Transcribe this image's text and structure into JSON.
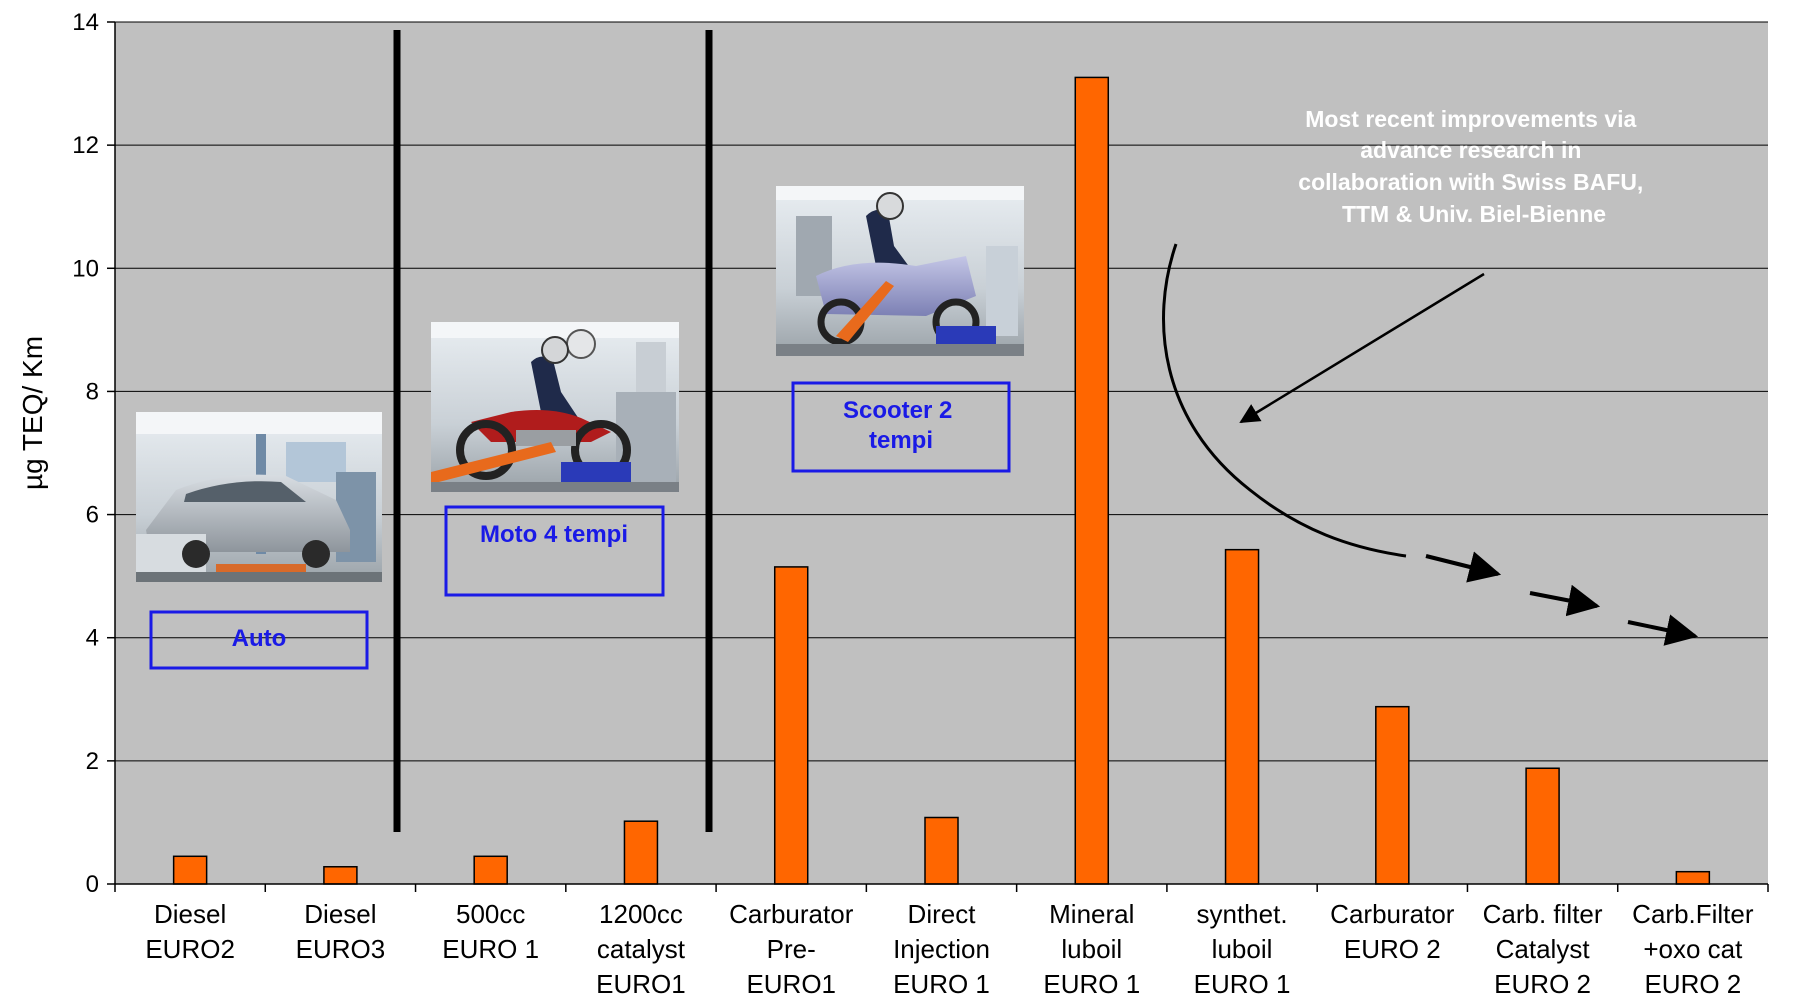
{
  "chart_data": {
    "type": "bar",
    "ylabel": "µg TEQ/ Km",
    "ylim": [
      0,
      14
    ],
    "yticks": [
      0,
      2,
      4,
      6,
      8,
      10,
      12,
      14
    ],
    "grid": true,
    "colors": {
      "plot_bg": "#c0c0c0",
      "bar": "#ff6600",
      "grid": "#000000",
      "box": "#1a1ae6",
      "note": "#ffffff"
    },
    "categories": [
      [
        "Diesel",
        "EURO2"
      ],
      [
        "Diesel",
        "EURO3"
      ],
      [
        "500cc",
        "EURO 1"
      ],
      [
        "1200cc",
        "catalyst",
        "EURO1"
      ],
      [
        "Carburator",
        "Pre-",
        "EURO1"
      ],
      [
        "Direct",
        "Injection",
        "EURO 1"
      ],
      [
        "Mineral",
        "luboil",
        "EURO 1"
      ],
      [
        "synthet.",
        "luboil",
        "EURO 1"
      ],
      [
        "Carburator",
        "EURO 2"
      ],
      [
        "Carb. filter",
        "Catalyst",
        "EURO 2"
      ],
      [
        "Carb.Filter",
        "+oxo cat",
        "EURO 2"
      ]
    ],
    "values": [
      0.45,
      0.28,
      0.45,
      1.02,
      5.15,
      1.08,
      13.1,
      5.43,
      2.88,
      1.88,
      0.2
    ],
    "group_labels": [
      [
        "Auto"
      ],
      [
        "Moto 4 tempi"
      ],
      [
        "Scooter 2",
        "tempi"
      ]
    ],
    "annotation": [
      "Most recent improvements via",
      "advance research in",
      "collaboration with Swiss BAFU,",
      "TTM & Univ. Biel-Bienne"
    ],
    "photos": [
      "car-photo",
      "motorcycle-photo",
      "scooter-photo"
    ]
  }
}
